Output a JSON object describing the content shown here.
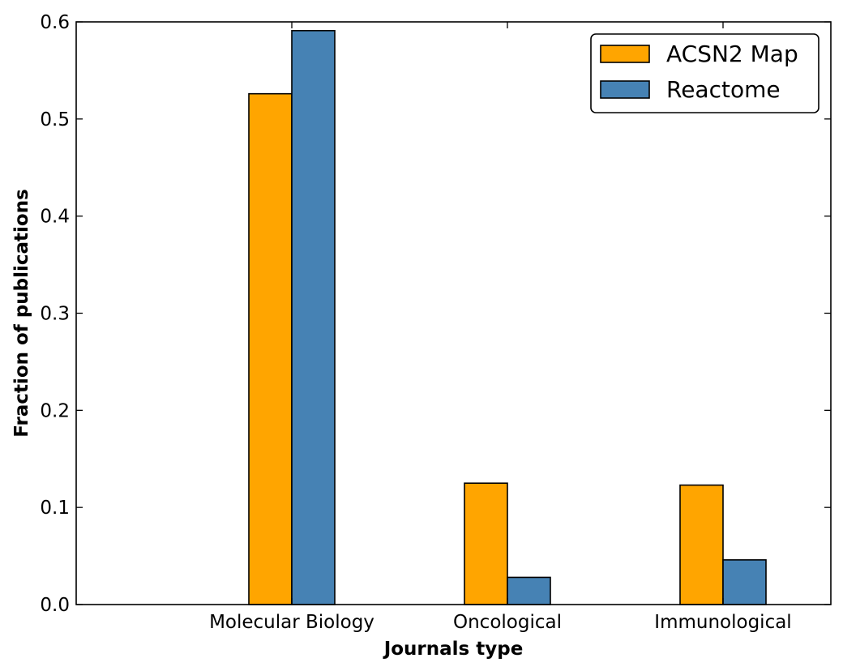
{
  "chart_data": {
    "type": "bar",
    "title": "",
    "xlabel": "Journals type",
    "ylabel": "Fraction of publications",
    "categories": [
      "Molecular Biology",
      "Oncological",
      "Immunological"
    ],
    "series": [
      {
        "name": "ACSN2 Map",
        "values": [
          0.526,
          0.125,
          0.123
        ],
        "color": "#FFA500"
      },
      {
        "name": "Reactome",
        "values": [
          0.591,
          0.028,
          0.046
        ],
        "color": "#4682B4"
      }
    ],
    "ylim": [
      0,
      0.6
    ],
    "yticks": [
      "0.0",
      "0.1",
      "0.2",
      "0.3",
      "0.4",
      "0.5",
      "0.6"
    ],
    "grid": false,
    "legend_position": "top-right"
  }
}
